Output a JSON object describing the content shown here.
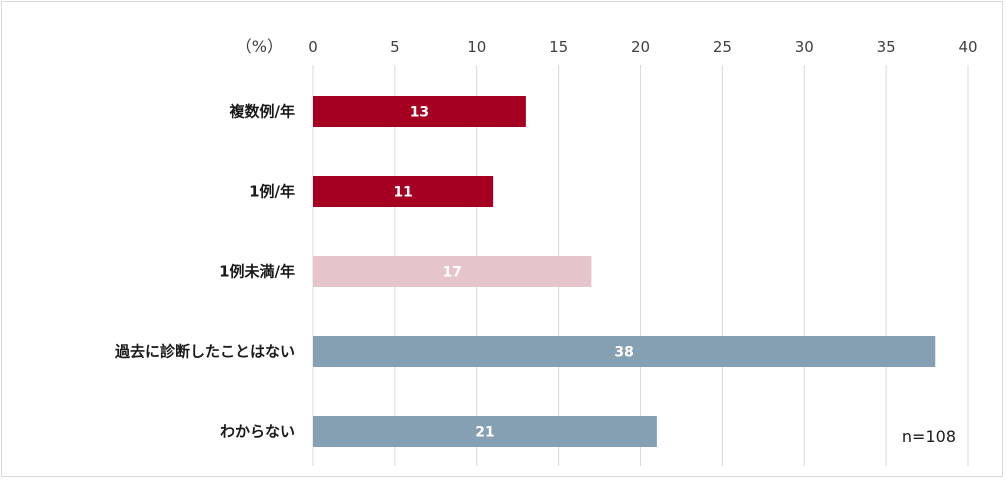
{
  "chart_data": {
    "type": "bar",
    "orientation": "horizontal",
    "unit_label": "（%）",
    "categories": [
      "複数例/年",
      "1例/年",
      "1例未満/年",
      "過去に診断したことはない",
      "わからない"
    ],
    "values": [
      13,
      11,
      17,
      38,
      21
    ],
    "data_labels": [
      "13",
      "11",
      "17",
      "38",
      "21"
    ],
    "bar_colors": [
      "#a50021",
      "#a50021",
      "#e5c4ca",
      "#86a0b3",
      "#86a0b3"
    ],
    "xlim": [
      0,
      40
    ],
    "x_ticks": [
      0,
      5,
      10,
      15,
      20,
      25,
      30,
      35,
      40
    ],
    "x_tick_labels": [
      "0",
      "5",
      "10",
      "15",
      "20",
      "25",
      "30",
      "35",
      "40"
    ],
    "grid": true,
    "grid_color": "#d9d9d9",
    "axis_position": "top",
    "note": "n=108"
  }
}
